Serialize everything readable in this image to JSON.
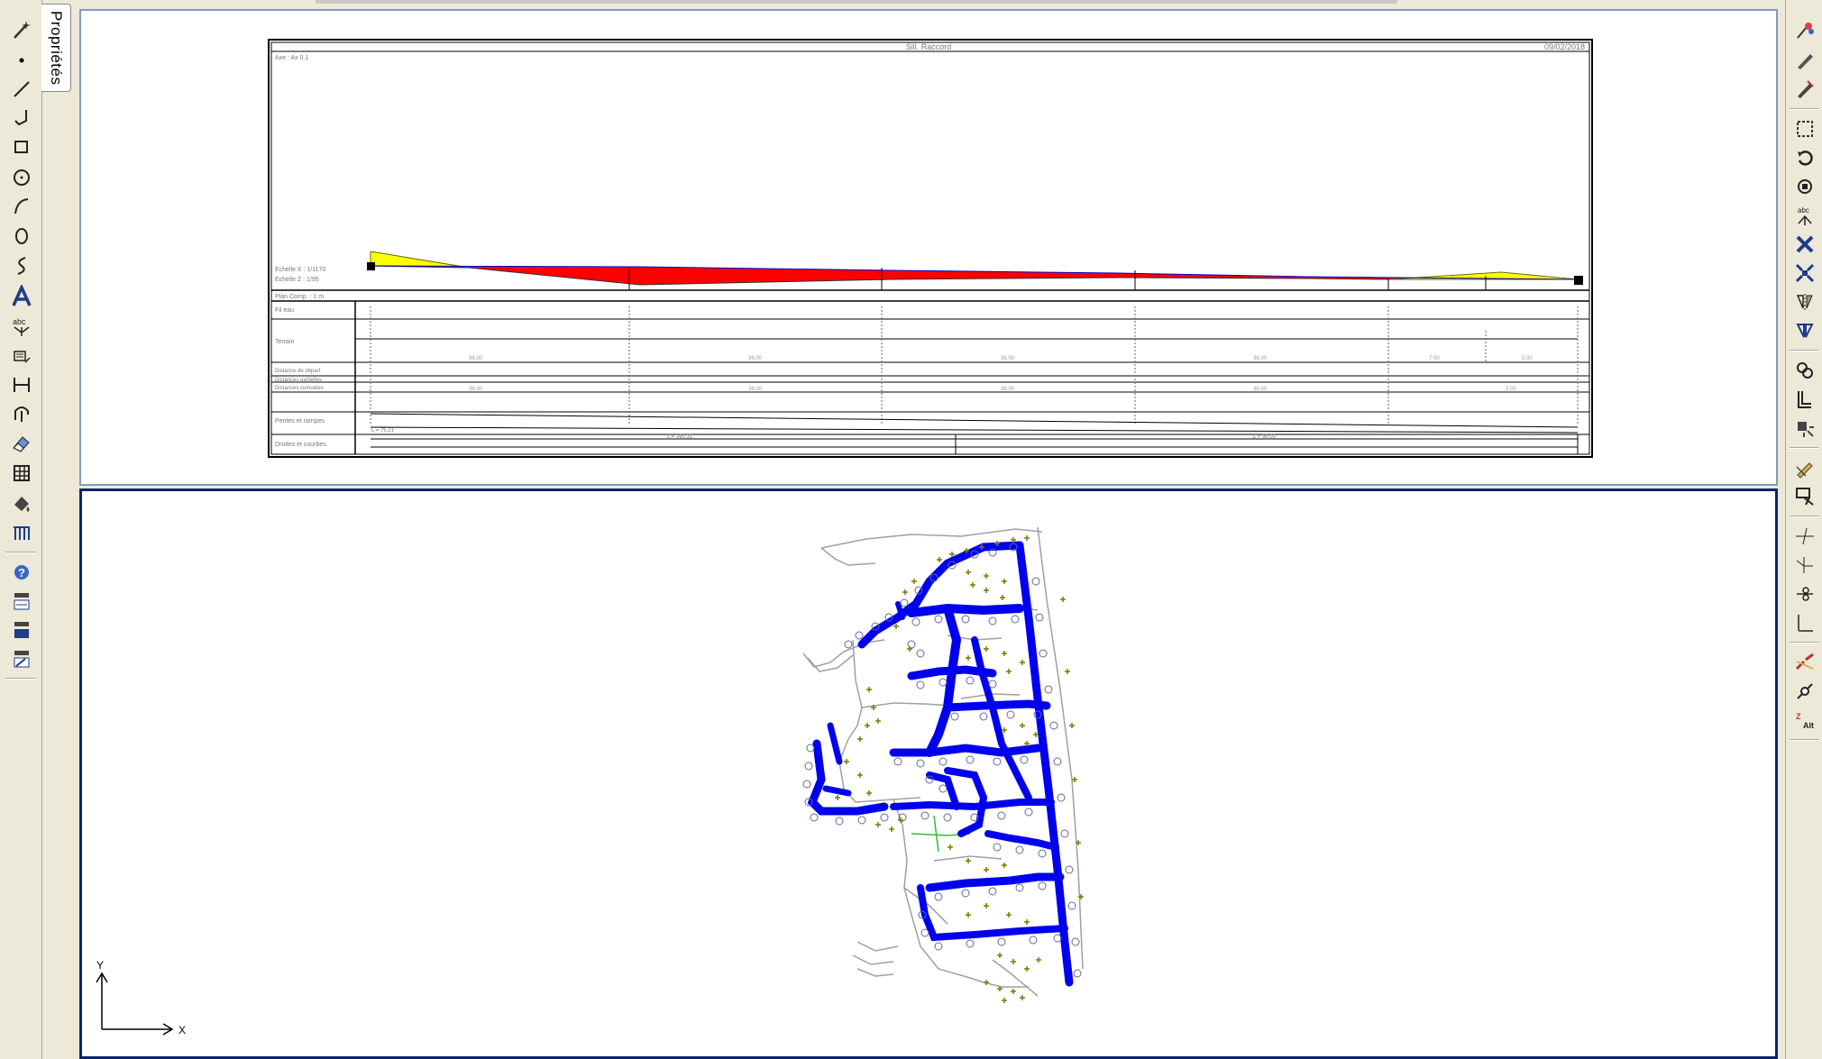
{
  "properties_tab": {
    "label": "Propriétés"
  },
  "profile": {
    "title": "Sill. Raccord",
    "date": "09/02/2018",
    "name_corner": "Axe : Ax 0.1",
    "left_notes": [
      "Echelle X : 1/1170",
      "Echelle Z : 1/95",
      "Plan Comp. : 1 m"
    ],
    "rows": [
      "Fil eau",
      "Terrain",
      "Distance de départ",
      "Distances partielles",
      "Distances cumulées",
      "Pentes et rampes",
      "Droites et courbes"
    ],
    "slope_labels": [
      "L = 75.21",
      "L = 160.31",
      "L = 95.00"
    ]
  },
  "axes": {
    "x_label": "X",
    "y_label": "Y"
  },
  "colors": {
    "fill_cut": "#ff0000",
    "fill_fill": "#ffff00",
    "network": "#0000ee",
    "points": "#7a7a00",
    "terrain_lines": "#9a9a9a",
    "green_line": "#33bb33"
  },
  "icons": {
    "left": [
      "magic-wand-icon",
      "point-icon",
      "line-icon",
      "polyline-icon",
      "rectangle-icon",
      "circle-icon",
      "arc-icon",
      "ellipse-icon",
      "spline-icon",
      "text-icon",
      "symbol-icon",
      "block-icon",
      "dimension-icon",
      "section-icon",
      "eraser-icon",
      "hatch-icon",
      "fill-icon",
      "table-icon",
      "help-icon",
      "layer-icon",
      "layer-fill-icon",
      "layer-edit-icon"
    ],
    "right": [
      "snap-icon",
      "pencil-icon",
      "pen-icon",
      "select-window-icon",
      "rotate-icon",
      "rotate-copy-icon",
      "scale-icon",
      "delete-icon",
      "stretch-icon",
      "mirror-v-icon",
      "mirror-h-icon",
      "array-icon",
      "offset-icon",
      "explode-icon",
      "edit-pencil-icon",
      "split-icon",
      "trim-icon",
      "extend-icon",
      "cut-icon",
      "corner-icon",
      "break-icon",
      "join-icon",
      "alt-level-icon"
    ]
  }
}
